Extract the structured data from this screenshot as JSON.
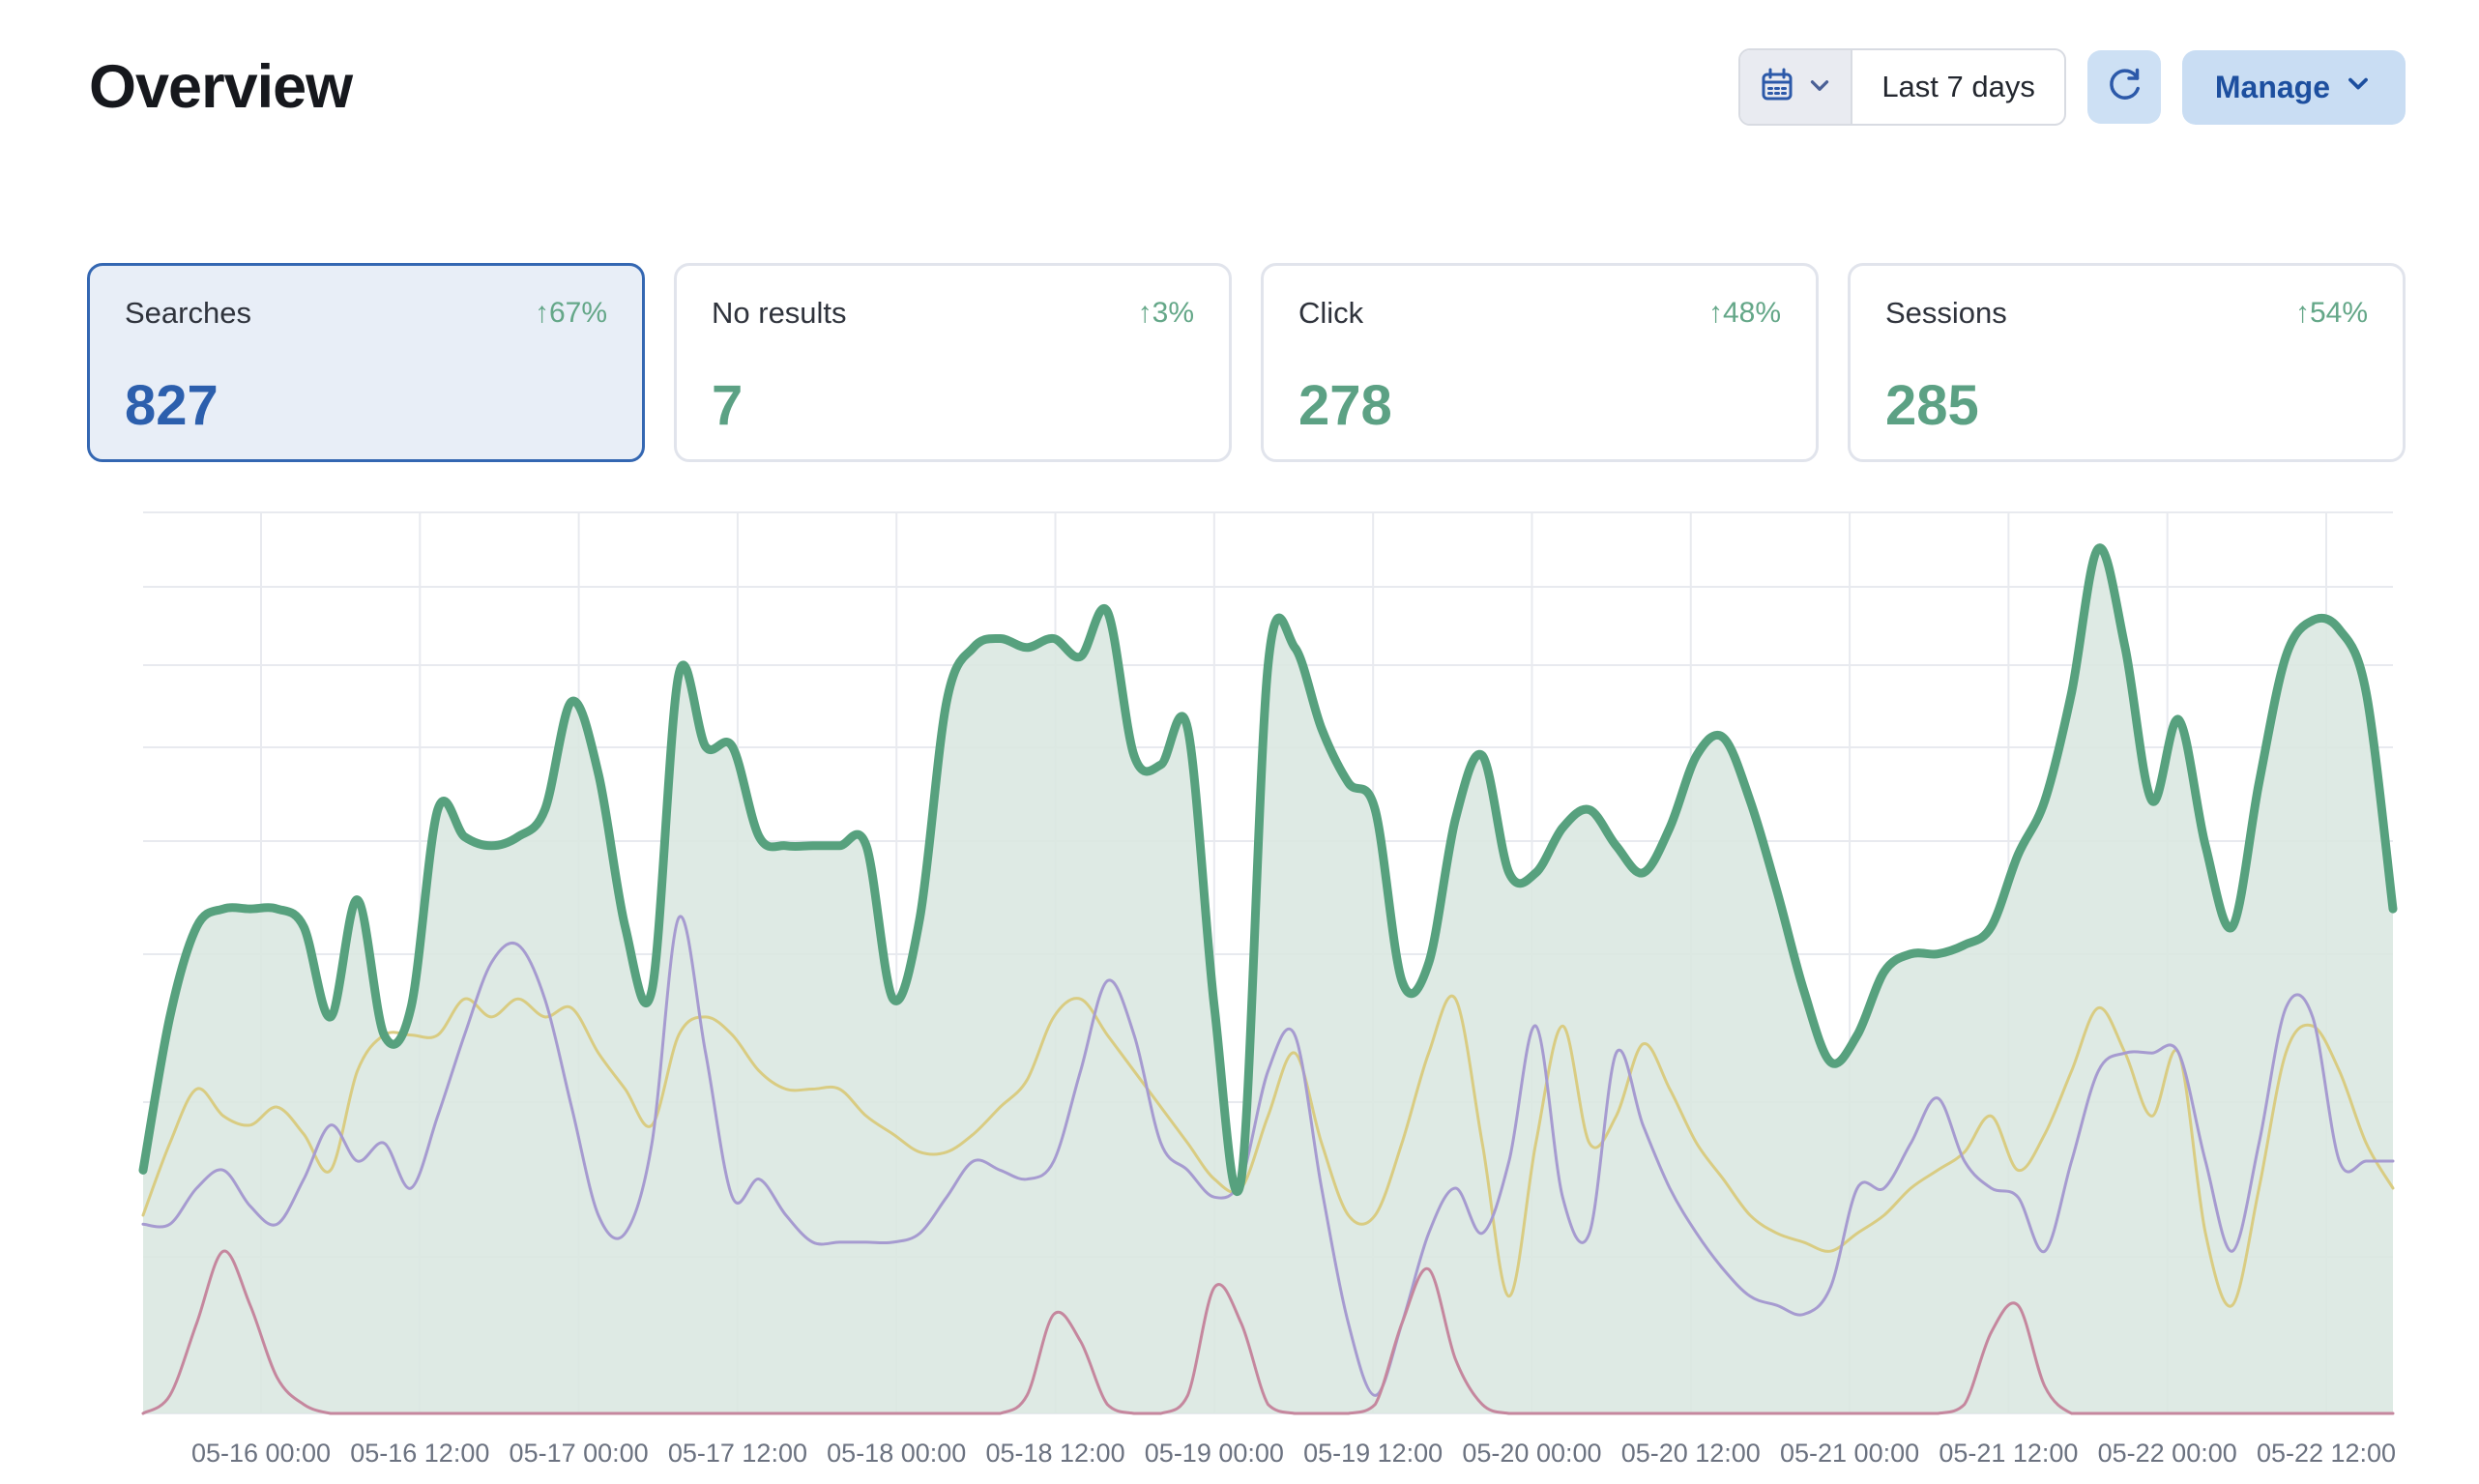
{
  "header": {
    "title": "Overview"
  },
  "toolbar": {
    "date_range_label": "Last 7 days",
    "date_range_icons": [
      "calendar-icon",
      "chevron-down-icon"
    ],
    "refresh_icon": "refresh-icon",
    "manage_label": "Manage",
    "manage_icon": "chevron-down-icon"
  },
  "stats": [
    {
      "label": "Searches",
      "delta": "↑67%",
      "value": "827",
      "selected": true,
      "value_color": "#2c5fad"
    },
    {
      "label": "No results",
      "delta": "↑3%",
      "value": "7",
      "selected": false,
      "value_color": "#5ca184"
    },
    {
      "label": "Click",
      "delta": "↑48%",
      "value": "278",
      "selected": false,
      "value_color": "#5ca184"
    },
    {
      "label": "Sessions",
      "delta": "↑54%",
      "value": "285",
      "selected": false,
      "value_color": "#5ca184"
    }
  ],
  "chart_data": {
    "type": "line",
    "smooth": true,
    "grid": true,
    "x_tick_labels": [
      "05-16 00:00",
      "05-16 12:00",
      "05-17 00:00",
      "05-17 12:00",
      "05-18 00:00",
      "05-18 12:00",
      "05-19 00:00",
      "05-19 12:00",
      "05-20 00:00",
      "05-20 12:00",
      "05-21 00:00",
      "05-21 12:00",
      "05-22 00:00",
      "05-22 12:00"
    ],
    "y_axis_labels": [],
    "y_scale": "relative 0-100 (no y tick labels shown in chart)",
    "x_span": {
      "from": "05-15 16:00",
      "to": "05-22 16:00",
      "step_hours": 2
    },
    "series": [
      {
        "name": "Searches",
        "color": "#57a17e",
        "line_width": 9,
        "area": true,
        "area_fill": "#d9e7e0",
        "values": [
          27,
          44,
          54,
          56,
          56,
          56,
          54,
          44,
          57,
          42,
          45,
          67,
          64,
          63,
          64,
          67,
          79,
          71,
          54,
          47,
          82,
          74,
          74,
          64,
          63,
          63,
          63,
          63,
          46,
          55,
          79,
          85,
          86,
          85,
          86,
          84,
          89,
          73,
          72,
          76,
          45,
          26,
          83,
          85,
          76,
          70,
          67,
          48,
          50,
          66,
          73,
          60,
          60,
          65,
          67,
          63,
          60,
          65,
          73,
          75,
          68,
          58,
          47,
          39,
          42,
          49,
          51,
          51,
          52,
          54,
          62,
          68,
          80,
          96,
          85,
          68,
          77,
          63,
          54,
          70,
          84,
          88,
          87,
          80,
          56
        ]
      },
      {
        "name": "Click",
        "color": "#d9cc82",
        "line_width": 3,
        "area": false,
        "values": [
          22,
          30,
          36,
          33,
          32,
          34,
          31,
          27,
          38,
          42,
          42,
          42,
          46,
          44,
          46,
          44,
          45,
          40,
          36,
          32,
          42,
          44,
          42,
          38,
          36,
          36,
          36,
          33,
          31,
          29,
          29,
          31,
          34,
          37,
          44,
          46,
          42,
          38,
          34,
          30,
          26,
          25,
          33,
          40,
          30,
          22,
          22,
          30,
          40,
          46,
          30,
          13,
          30,
          43,
          30,
          33,
          41,
          36,
          30,
          26,
          22,
          20,
          19,
          18,
          20,
          22,
          25,
          27,
          29,
          33,
          27,
          31,
          38,
          45,
          40,
          33,
          40,
          20,
          12,
          25,
          40,
          43,
          38,
          30,
          25
        ]
      },
      {
        "name": "Sessions",
        "color": "#a69bd0",
        "line_width": 3,
        "area": false,
        "values": [
          21,
          21,
          25,
          27,
          23,
          21,
          26,
          32,
          28,
          30,
          25,
          33,
          42,
          50,
          52,
          46,
          34,
          22,
          20,
          30,
          55,
          40,
          24,
          26,
          22,
          19,
          19,
          19,
          19,
          20,
          24,
          28,
          27,
          26,
          28,
          38,
          48,
          42,
          30,
          27,
          24,
          26,
          38,
          42,
          25,
          10,
          2,
          10,
          20,
          25,
          20,
          28,
          43,
          24,
          20,
          40,
          32,
          25,
          20,
          16,
          13,
          12,
          11,
          14,
          25,
          25,
          30,
          35,
          28,
          25,
          24,
          18,
          28,
          38,
          40,
          40,
          40,
          28,
          18,
          30,
          45,
          44,
          28,
          28,
          28
        ]
      },
      {
        "name": "No results",
        "color": "#c5879e",
        "line_width": 3,
        "area": false,
        "values": [
          0,
          2,
          10,
          18,
          12,
          4,
          1,
          0,
          0,
          0,
          0,
          0,
          0,
          0,
          0,
          0,
          0,
          0,
          0,
          0,
          0,
          0,
          0,
          0,
          0,
          0,
          0,
          0,
          0,
          0,
          0,
          0,
          0,
          2,
          11,
          8,
          1,
          0,
          0,
          2,
          14,
          10,
          1,
          0,
          0,
          0,
          1,
          10,
          16,
          6,
          1,
          0,
          0,
          0,
          0,
          0,
          0,
          0,
          0,
          0,
          0,
          0,
          0,
          0,
          0,
          0,
          0,
          0,
          1,
          9,
          12,
          3,
          0,
          0,
          0,
          0,
          0,
          0,
          0,
          0,
          0,
          0,
          0,
          0,
          0
        ]
      }
    ]
  },
  "colors": {
    "accent_blue": "#2c5fad",
    "accent_green": "#5ca184",
    "delta_green": "#64a788",
    "card_selected_bg": "#e8eef7",
    "card_selected_border": "#3467b2",
    "card_border": "#e1e4ec",
    "button_bg": "#c9ddf3",
    "icon_blue": "#2c59a9",
    "gridline": "#e8eaef",
    "tick_text": "#6b7280"
  }
}
